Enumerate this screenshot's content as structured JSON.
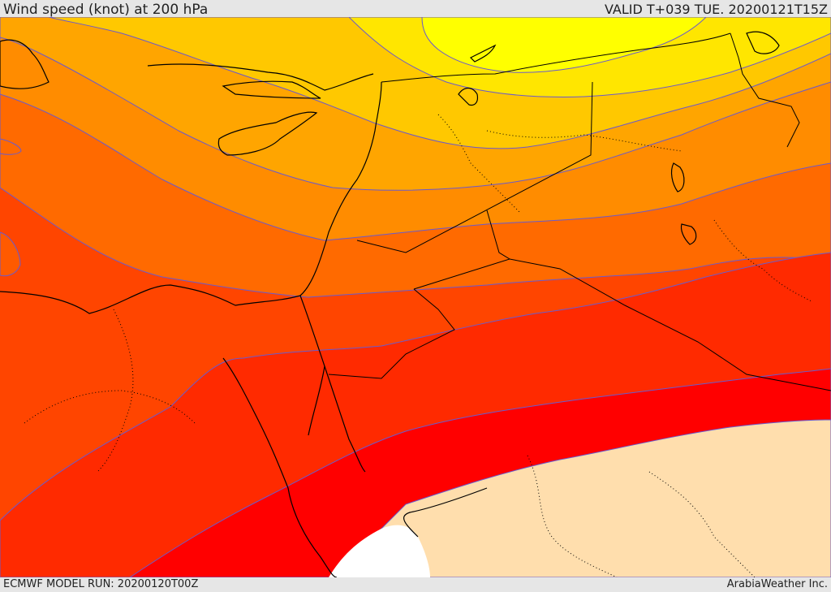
{
  "header": {
    "title": "Wind speed (knot) at 200 hPa",
    "valid": "VALID T+039 TUE. 20200121T15Z"
  },
  "footer": {
    "model_run": "ECMWF MODEL RUN: 20200120T00Z",
    "credit": "ArabiaWeather Inc."
  },
  "map": {
    "field": "wind speed",
    "colors": {
      "yellow": "#ffff00",
      "yellow_light": "#ffe600",
      "amber": "#ffc800",
      "orange_light": "#ffa500",
      "orange": "#ff8c00",
      "orange_dark": "#ff6a00",
      "red_orange": "#ff4500",
      "red_light": "#ff2a00",
      "red": "#ff0000",
      "peach": "#ffdead",
      "white": "#ffffff",
      "contour": "#6a5acd",
      "coast": "#000000"
    }
  }
}
